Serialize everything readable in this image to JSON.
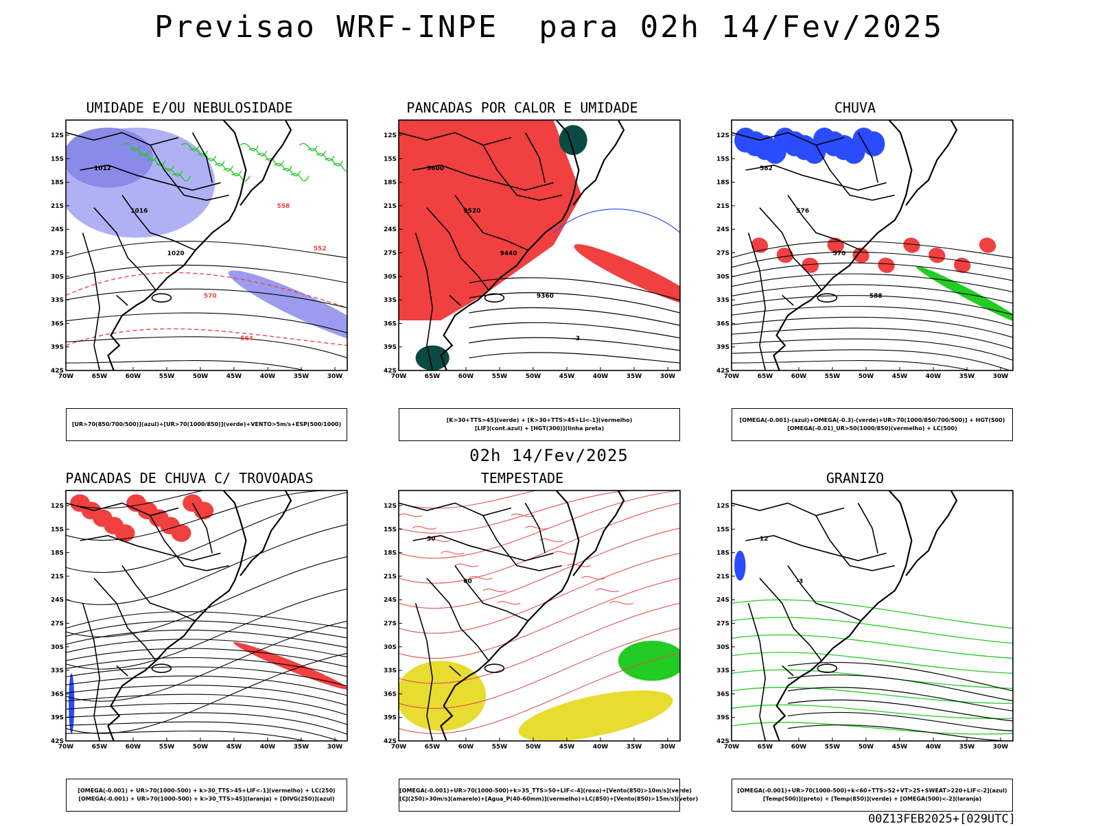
{
  "header": {
    "title": "Previsao WRF-INPE  para 02h 14/Fev/2025"
  },
  "mid_date": "02h 14/Fev/2025",
  "footer": {
    "stamp": "00Z13FEB2025+[029UTC]"
  },
  "axes": {
    "lat_labels": [
      "12S",
      "15S",
      "18S",
      "21S",
      "24S",
      "27S",
      "30S",
      "33S",
      "36S",
      "39S",
      "42S"
    ],
    "lon_labels": [
      "70W",
      "65W",
      "60W",
      "55W",
      "50W",
      "45W",
      "40W",
      "35W",
      "30W"
    ]
  },
  "colors": {
    "blue": "#2b4bff",
    "light_blue": "#9b9bf0",
    "green": "#22cc22",
    "red": "#f04040",
    "dark_teal": "#0a4a44",
    "orange": "#f08020",
    "yellow": "#e8dc30",
    "purple": "#9020c0"
  },
  "panels": [
    {
      "title": "UMIDADE E/OU NEBULOSIDADE",
      "legend": [
        "[UR>70(850/700/500)](azul)+[UR>70(1000/850)](verde)+VENTO>5m/s+ESP(500/1000)"
      ],
      "contour_labels": [
        "1012",
        "1016",
        "1020",
        "570",
        "564",
        "558",
        "552"
      ]
    },
    {
      "title": "PANCADAS POR CALOR E UMIDADE",
      "legend": [
        "[K>30+TTS>45](verde) + [K>30+TTS>45+LI<-1](vermelho)",
        "[LIF](cont.azul) + [HGT(300)](linha preta)"
      ],
      "contour_labels": [
        "9600",
        "9520",
        "9440",
        "9360",
        "-3"
      ]
    },
    {
      "title": "CHUVA",
      "legend": [
        "[OMEGA(-0.001)-(azul)+OMEGA(-0.3)-(verde)+UR>70(1000/850/700/500)] + HGT(500)",
        "[OMEGA(-0.01)_UR>50(1000/850)(vermelho) + LC(500)"
      ],
      "contour_labels": [
        "582",
        "576",
        "570",
        "588"
      ]
    },
    {
      "title": "PANCADAS DE CHUVA C/ TROVOADAS",
      "legend": [
        "[OMEGA(-0.001) + UR>70(1000-500) + k>30_TTS>45+LIF<-1](vermelho) + LC(250)",
        "[OMEGA(-0.001) + UR>70(1000-500) + k>30_TTS>45](laranja) + [DIVG(250)](azul)"
      ],
      "contour_labels": []
    },
    {
      "title": "TEMPESTADE",
      "legend": [
        "[OMEGA(-0.001)+UR>70(1000-500)+k>35_TTS>50+LIF<-4](roxo)+[Vento(850)>10m/s](verde)",
        "[CJ(250)>30m/s](amarelo)+[Agua_P(40-60mm)](vermelho)+LC(850)+[Vento(850)>15m/s](vetor)"
      ],
      "contour_labels": [
        "50",
        "60"
      ]
    },
    {
      "title": "GRANIZO",
      "legend": [
        "[OMEGA(-0.001)+UR>70(1000-500)+k<60+TTS>52+VT>25+SWEAT>220+LIF<-2](azul)",
        "[Temp(500)](preto) + [Temp(850)](verde) + [OMEGA(500)<-2](laranja)"
      ],
      "contour_labels": [
        "12",
        "-3"
      ]
    }
  ]
}
